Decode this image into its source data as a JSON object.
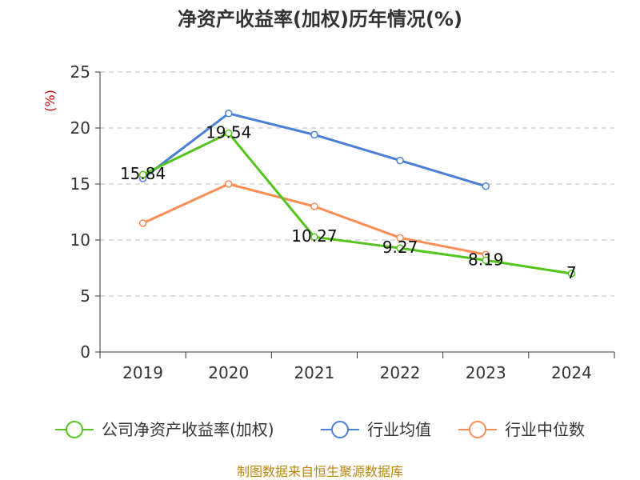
{
  "chart_data": {
    "type": "line",
    "title": "净资产收益率(加权)历年情况(%)",
    "ylabel": "(%)",
    "xlabel": "",
    "categories": [
      "2019",
      "2020",
      "2021",
      "2022",
      "2023",
      "2024"
    ],
    "ylim": [
      0,
      25
    ],
    "yticks": [
      0,
      5,
      10,
      15,
      20,
      25
    ],
    "grid": true,
    "legend_position": "bottom",
    "series": [
      {
        "name": "公司净资产收益率(加权)",
        "color": "#52c41a",
        "values": [
          15.84,
          19.54,
          10.27,
          9.27,
          8.19,
          7
        ],
        "labels": [
          "15.84",
          "19.54",
          "10.27",
          "9.27",
          "8.19",
          "7"
        ]
      },
      {
        "name": "行业均值",
        "color": "#4a7fd8",
        "values": [
          15.5,
          21.3,
          19.4,
          17.1,
          14.8,
          null
        ]
      },
      {
        "name": "行业中位数",
        "color": "#fa8c54",
        "values": [
          11.5,
          15.0,
          13.0,
          10.2,
          8.7,
          null
        ]
      }
    ],
    "source": "制图数据来自恒生聚源数据库"
  }
}
